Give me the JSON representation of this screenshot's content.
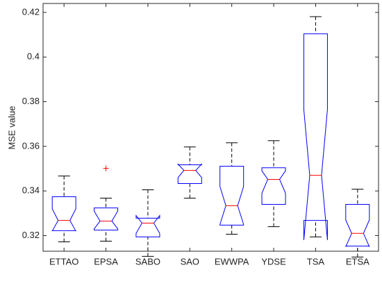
{
  "chart_data": {
    "type": "box",
    "ylabel": "MSE value",
    "categories": [
      "ETTAO",
      "EPSA",
      "SABO",
      "SAO",
      "EWWPA",
      "YDSE",
      "TSA",
      "ETSA"
    ],
    "boxes": [
      {
        "min": 0.3172,
        "q1": 0.3222,
        "median": 0.3268,
        "q3": 0.3374,
        "max": 0.3467,
        "notch": [
          0.322,
          0.332
        ]
      },
      {
        "min": 0.3175,
        "q1": 0.3225,
        "median": 0.3265,
        "q3": 0.3324,
        "max": 0.3368,
        "notch": [
          0.323,
          0.331
        ],
        "outliers": [
          0.3501
        ]
      },
      {
        "min": 0.3107,
        "q1": 0.3194,
        "median": 0.3256,
        "q3": 0.3278,
        "max": 0.3405,
        "notch": [
          0.321,
          0.329
        ]
      },
      {
        "min": 0.3368,
        "q1": 0.3433,
        "median": 0.3492,
        "q3": 0.3517,
        "max": 0.3597,
        "notch": [
          0.346,
          0.352
        ]
      },
      {
        "min": 0.3206,
        "q1": 0.3247,
        "median": 0.3334,
        "q3": 0.3511,
        "max": 0.3616,
        "notch": [
          0.325,
          0.342
        ]
      },
      {
        "min": 0.324,
        "q1": 0.334,
        "median": 0.3452,
        "q3": 0.3504,
        "max": 0.3625,
        "notch": [
          0.339,
          0.349
        ]
      },
      {
        "min": 0.3194,
        "q1": 0.3268,
        "median": 0.347,
        "q3": 0.4104,
        "max": 0.4181,
        "notch": [
          0.318,
          0.3765
        ]
      },
      {
        "min": 0.3104,
        "q1": 0.3153,
        "median": 0.321,
        "q3": 0.334,
        "max": 0.3408,
        "notch": [
          0.315,
          0.327
        ]
      }
    ],
    "box_color": "#0000ff",
    "median_color": "#ff0000",
    "whisker_color": "#000000",
    "outlier_color": "#ff0000",
    "ylim": [
      0.313,
      0.424
    ],
    "yticks": [
      0.32,
      0.34,
      0.36,
      0.38,
      0.4,
      0.42
    ]
  }
}
